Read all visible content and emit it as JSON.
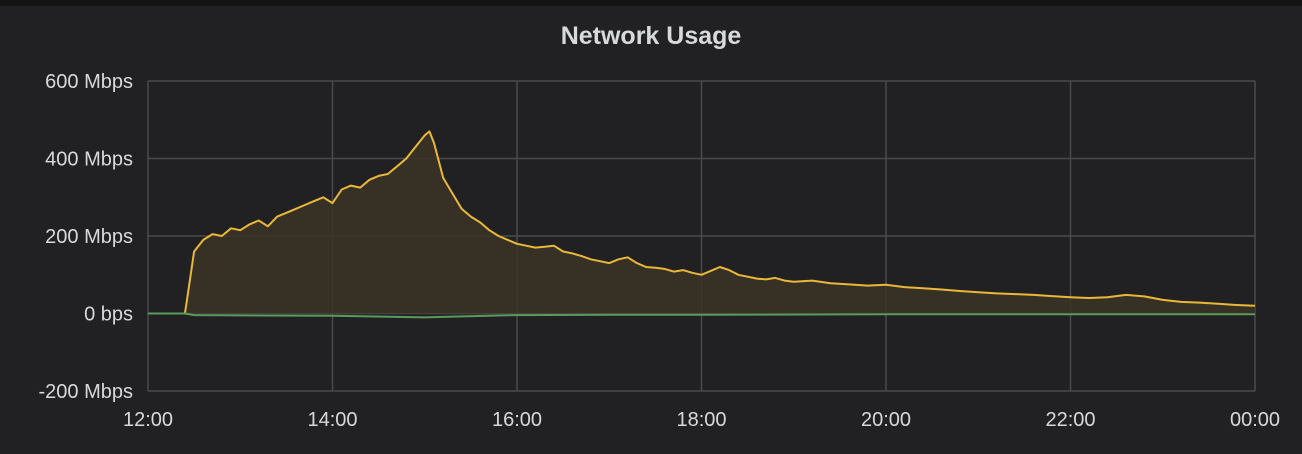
{
  "panel": {
    "title": "Network Usage"
  },
  "colors": {
    "background": "#212124",
    "grid": "#4a4a4e",
    "text": "#d8d9da",
    "series_in": "#eab839",
    "series_in_fill": "#3b3426",
    "series_out": "#5a9a5a"
  },
  "chart_data": {
    "type": "area",
    "title": "Network Usage",
    "y_unit": "Mbps",
    "ylim": [
      -200,
      600
    ],
    "y_ticks": [
      -200,
      0,
      200,
      400,
      600
    ],
    "y_tick_labels": [
      "-200 Mbps",
      "0 bps",
      "200 Mbps",
      "400 Mbps",
      "600 Mbps"
    ],
    "x_unit": "hours",
    "xlim": [
      12,
      24
    ],
    "x_ticks": [
      12,
      14,
      16,
      18,
      20,
      22,
      24
    ],
    "x_tick_labels": [
      "12:00",
      "14:00",
      "16:00",
      "18:00",
      "20:00",
      "22:00",
      "00:00"
    ],
    "grid": true,
    "legend": "none",
    "series": [
      {
        "color": "#eab839",
        "fill": true,
        "x": [
          12.0,
          12.3,
          12.4,
          12.42,
          12.5,
          12.6,
          12.7,
          12.8,
          12.9,
          13.0,
          13.1,
          13.2,
          13.3,
          13.4,
          13.5,
          13.6,
          13.7,
          13.8,
          13.9,
          14.0,
          14.1,
          14.2,
          14.3,
          14.4,
          14.5,
          14.6,
          14.7,
          14.8,
          14.9,
          15.0,
          15.05,
          15.1,
          15.2,
          15.3,
          15.4,
          15.5,
          15.6,
          15.7,
          15.8,
          15.9,
          16.0,
          16.1,
          16.2,
          16.3,
          16.4,
          16.5,
          16.6,
          16.7,
          16.8,
          16.9,
          17.0,
          17.1,
          17.2,
          17.3,
          17.4,
          17.5,
          17.6,
          17.7,
          17.8,
          17.9,
          18.0,
          18.1,
          18.2,
          18.3,
          18.4,
          18.5,
          18.6,
          18.7,
          18.8,
          18.9,
          19.0,
          19.2,
          19.4,
          19.6,
          19.8,
          20.0,
          20.2,
          20.4,
          20.6,
          20.8,
          21.0,
          21.2,
          21.4,
          21.6,
          21.8,
          22.0,
          22.2,
          22.4,
          22.6,
          22.8,
          23.0,
          23.2,
          23.4,
          23.6,
          23.8,
          24.0
        ],
        "values": [
          0,
          0,
          0,
          30,
          160,
          190,
          205,
          200,
          220,
          215,
          230,
          240,
          225,
          250,
          260,
          270,
          280,
          290,
          300,
          285,
          320,
          330,
          325,
          345,
          355,
          360,
          380,
          400,
          430,
          460,
          470,
          440,
          350,
          310,
          270,
          250,
          235,
          215,
          200,
          190,
          180,
          175,
          170,
          172,
          175,
          160,
          155,
          148,
          140,
          135,
          130,
          140,
          145,
          130,
          120,
          118,
          115,
          108,
          112,
          105,
          100,
          110,
          120,
          112,
          100,
          95,
          90,
          88,
          92,
          85,
          82,
          85,
          78,
          75,
          72,
          74,
          68,
          65,
          62,
          58,
          55,
          52,
          50,
          48,
          45,
          42,
          40,
          42,
          48,
          44,
          35,
          30,
          28,
          25,
          22,
          20
        ]
      },
      {
        "color": "#5a9a5a",
        "fill": false,
        "x": [
          12.0,
          12.4,
          12.5,
          13.0,
          14.0,
          15.0,
          15.3,
          16.0,
          17.0,
          18.0,
          20.0,
          22.0,
          24.0
        ],
        "values": [
          0,
          0,
          -4,
          -5,
          -6,
          -10,
          -8,
          -4,
          -3,
          -3,
          -2,
          -2,
          -2
        ]
      }
    ]
  }
}
